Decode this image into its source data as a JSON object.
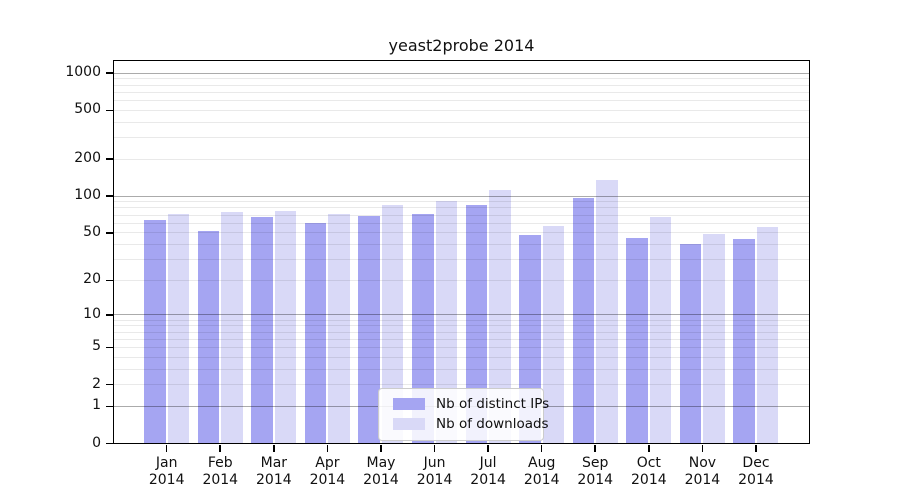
{
  "chart_data": {
    "type": "bar",
    "title": "yeast2probe 2014",
    "categories": [
      "Jan 2014",
      "Feb 2014",
      "Mar 2014",
      "Apr 2014",
      "May 2014",
      "Jun 2014",
      "Jul 2014",
      "Aug 2014",
      "Sep 2014",
      "Oct 2014",
      "Nov 2014",
      "Dec 2014"
    ],
    "series": [
      {
        "name": "Nb of distinct IPs",
        "color": "#a5a5f2",
        "values": [
          64,
          52,
          68,
          60,
          69,
          72,
          84,
          48,
          96,
          45,
          40,
          44
        ]
      },
      {
        "name": "Nb of downloads",
        "color": "#d9d9f7",
        "values": [
          72,
          74,
          76,
          71,
          85,
          92,
          112,
          57,
          136,
          67,
          49,
          56
        ]
      }
    ],
    "xlabel": "",
    "ylabel": "",
    "yscale": "log10(1+x)",
    "yticks": [
      0,
      1,
      2,
      5,
      10,
      20,
      50,
      100,
      200,
      500,
      1000
    ],
    "grid_major_values": [
      1,
      10,
      100,
      1000
    ],
    "grid_minor_values": [
      2,
      3,
      4,
      6,
      7,
      8,
      9,
      20,
      30,
      40,
      60,
      70,
      80,
      90,
      200,
      300,
      400,
      600,
      700,
      800,
      900
    ],
    "ylim": [
      0,
      1280
    ],
    "grid": true,
    "legend_position": "lower center",
    "axis_color": "#000000",
    "text_color": "#111111"
  }
}
